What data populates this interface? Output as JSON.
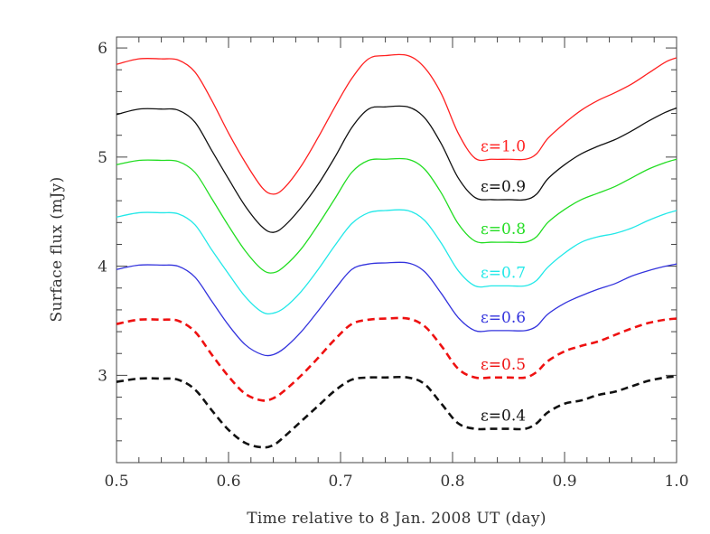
{
  "chart_data": {
    "type": "line",
    "title": "",
    "xlabel": "Time relative to 8 Jan. 2008 UT (day)",
    "ylabel": "Surface flux (mJy)",
    "xlim": [
      0.5,
      1.0
    ],
    "ylim": [
      2.2,
      6.1
    ],
    "xticks": [
      0.5,
      0.6,
      0.7,
      0.8,
      0.9,
      1.0
    ],
    "xtick_labels": [
      "0.5",
      "0.6",
      "0.7",
      "0.8",
      "0.9",
      "1.0"
    ],
    "yticks": [
      3,
      4,
      5,
      6
    ],
    "ytick_labels": [
      "3",
      "4",
      "5",
      "6"
    ],
    "grid": false,
    "legend": "none",
    "x": [
      0.5,
      0.52,
      0.54,
      0.555,
      0.57,
      0.585,
      0.6,
      0.615,
      0.63,
      0.64,
      0.65,
      0.665,
      0.68,
      0.695,
      0.71,
      0.725,
      0.74,
      0.76,
      0.775,
      0.79,
      0.805,
      0.82,
      0.835,
      0.85,
      0.865,
      0.875,
      0.885,
      0.9,
      0.915,
      0.93,
      0.945,
      0.96,
      0.975,
      0.99,
      1.0
    ],
    "series": [
      {
        "label": "ε=1.0",
        "color": "#ff2020",
        "dashed": false,
        "label_x": 0.825,
        "values": [
          5.85,
          5.9,
          5.9,
          5.89,
          5.78,
          5.52,
          5.22,
          4.95,
          4.72,
          4.66,
          4.72,
          4.92,
          5.18,
          5.46,
          5.72,
          5.9,
          5.93,
          5.93,
          5.82,
          5.58,
          5.22,
          4.99,
          4.98,
          4.98,
          4.98,
          5.03,
          5.17,
          5.31,
          5.43,
          5.52,
          5.59,
          5.67,
          5.77,
          5.87,
          5.91
        ]
      },
      {
        "label": "ε=0.9",
        "color": "#111111",
        "dashed": false,
        "label_x": 0.825,
        "values": [
          5.39,
          5.44,
          5.44,
          5.43,
          5.32,
          5.06,
          4.8,
          4.55,
          4.36,
          4.31,
          4.37,
          4.54,
          4.75,
          5.0,
          5.27,
          5.44,
          5.46,
          5.46,
          5.36,
          5.12,
          4.81,
          4.63,
          4.61,
          4.61,
          4.61,
          4.66,
          4.8,
          4.93,
          5.03,
          5.1,
          5.16,
          5.24,
          5.33,
          5.41,
          5.45
        ]
      },
      {
        "label": "ε=0.8",
        "color": "#22dd22",
        "dashed": false,
        "label_x": 0.825,
        "values": [
          4.93,
          4.97,
          4.97,
          4.96,
          4.86,
          4.62,
          4.37,
          4.14,
          3.97,
          3.94,
          4.0,
          4.16,
          4.38,
          4.62,
          4.86,
          4.97,
          4.98,
          4.98,
          4.89,
          4.67,
          4.39,
          4.23,
          4.22,
          4.22,
          4.22,
          4.27,
          4.4,
          4.52,
          4.61,
          4.67,
          4.73,
          4.81,
          4.89,
          4.95,
          4.98
        ]
      },
      {
        "label": "ε=0.7",
        "color": "#22e8e8",
        "dashed": false,
        "label_x": 0.825,
        "values": [
          4.45,
          4.49,
          4.49,
          4.48,
          4.38,
          4.15,
          3.93,
          3.72,
          3.58,
          3.57,
          3.62,
          3.77,
          3.97,
          4.19,
          4.39,
          4.49,
          4.51,
          4.51,
          4.42,
          4.21,
          3.96,
          3.82,
          3.82,
          3.82,
          3.82,
          3.87,
          3.99,
          4.12,
          4.22,
          4.27,
          4.3,
          4.35,
          4.42,
          4.48,
          4.51
        ]
      },
      {
        "label": "ε=0.6",
        "color": "#3333dd",
        "dashed": false,
        "label_x": 0.825,
        "values": [
          3.97,
          4.01,
          4.01,
          4.0,
          3.9,
          3.68,
          3.46,
          3.28,
          3.19,
          3.19,
          3.25,
          3.4,
          3.59,
          3.79,
          3.97,
          4.02,
          4.03,
          4.03,
          3.95,
          3.75,
          3.53,
          3.41,
          3.41,
          3.41,
          3.41,
          3.45,
          3.56,
          3.66,
          3.73,
          3.79,
          3.84,
          3.91,
          3.96,
          4.0,
          4.02
        ]
      },
      {
        "label": "ε=0.5",
        "color": "#ee1111",
        "dashed": true,
        "label_x": 0.825,
        "values": [
          3.47,
          3.51,
          3.51,
          3.5,
          3.4,
          3.19,
          2.99,
          2.83,
          2.77,
          2.79,
          2.86,
          3.0,
          3.16,
          3.33,
          3.47,
          3.51,
          3.52,
          3.52,
          3.45,
          3.27,
          3.06,
          2.98,
          2.98,
          2.98,
          2.98,
          3.03,
          3.13,
          3.22,
          3.27,
          3.31,
          3.37,
          3.43,
          3.48,
          3.51,
          3.52
        ]
      },
      {
        "label": "ε=0.4",
        "color": "#111111",
        "dashed": true,
        "label_x": 0.825,
        "values": [
          2.94,
          2.97,
          2.97,
          2.96,
          2.87,
          2.68,
          2.5,
          2.38,
          2.34,
          2.36,
          2.44,
          2.58,
          2.72,
          2.86,
          2.96,
          2.98,
          2.98,
          2.98,
          2.92,
          2.74,
          2.56,
          2.51,
          2.51,
          2.51,
          2.51,
          2.56,
          2.66,
          2.74,
          2.77,
          2.82,
          2.85,
          2.9,
          2.95,
          2.98,
          2.99
        ]
      }
    ]
  }
}
